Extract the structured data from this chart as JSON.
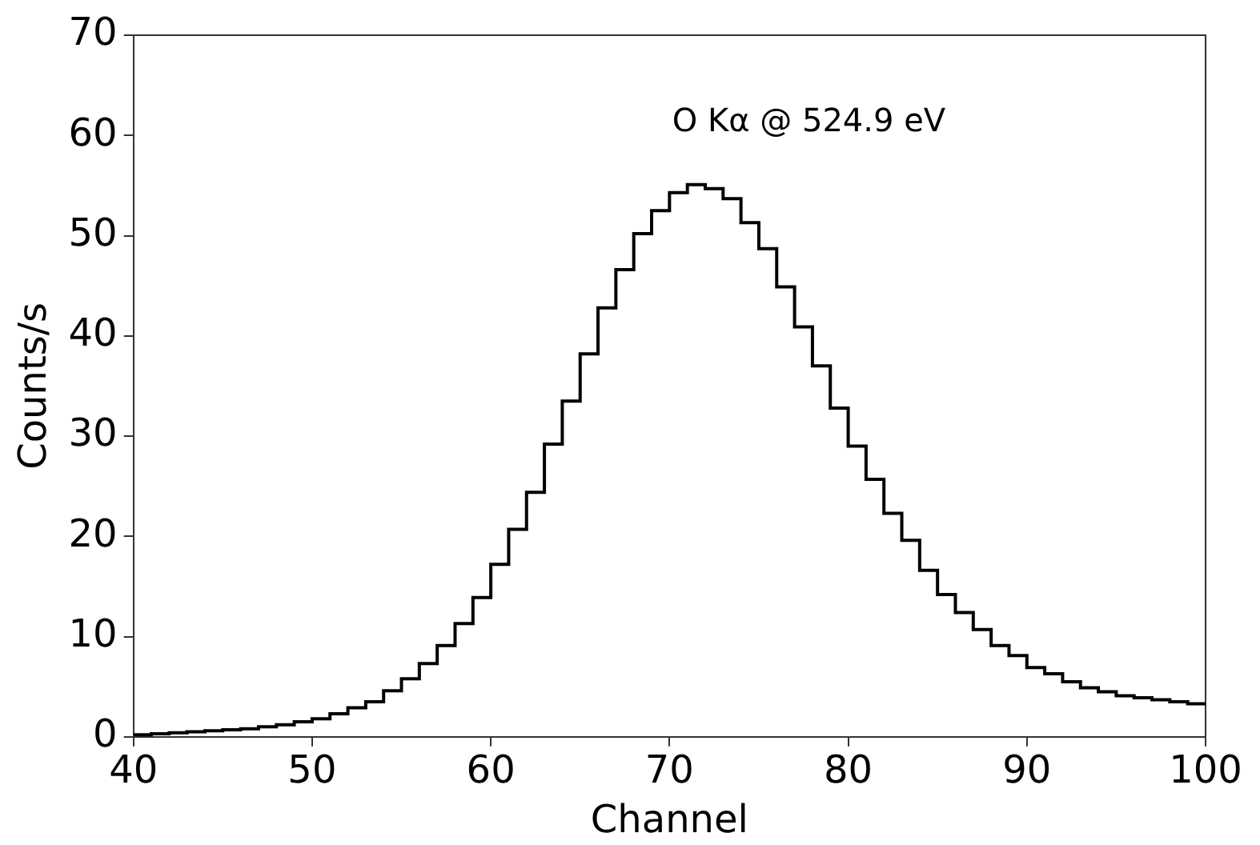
{
  "chart_data": {
    "type": "histogram",
    "xlabel": "Channel",
    "ylabel": "Counts/s",
    "annotations": [
      "O K$_{}$α @ 524.9 eV"
    ],
    "bins": [
      40,
      41,
      42,
      43,
      44,
      45,
      46,
      47,
      48,
      49,
      50,
      51,
      52,
      53,
      54,
      55,
      56,
      57,
      58,
      59,
      60,
      61,
      62,
      63,
      64,
      65,
      66,
      67,
      68,
      69,
      70,
      71,
      72,
      73,
      74,
      75,
      76,
      77,
      78,
      79,
      80,
      81,
      82,
      83,
      84,
      85,
      86,
      87,
      88,
      89,
      90,
      91,
      92,
      93,
      94,
      95,
      96,
      97,
      98,
      99,
      100
    ],
    "values": [
      0.2,
      0.3,
      0.4,
      0.5,
      0.6,
      0.7,
      0.8,
      1.0,
      1.2,
      1.5,
      1.8,
      2.3,
      2.9,
      3.5,
      4.6,
      5.8,
      7.3,
      9.1,
      11.3,
      13.9,
      17.2,
      20.7,
      24.4,
      29.2,
      33.5,
      38.2,
      42.8,
      46.6,
      50.2,
      52.5,
      54.3,
      55.1,
      54.7,
      53.7,
      51.3,
      48.7,
      44.9,
      40.9,
      37.0,
      32.8,
      29.0,
      25.7,
      22.3,
      19.6,
      16.6,
      14.2,
      12.4,
      10.7,
      9.1,
      8.1,
      6.9,
      6.3,
      5.5,
      4.9,
      4.5,
      4.1,
      3.9,
      3.7,
      3.5,
      3.3
    ],
    "color": "#000000",
    "xlim": [
      40,
      100
    ],
    "ylim": [
      0,
      70
    ],
    "xticks": [
      40,
      50,
      60,
      70,
      80,
      90,
      100
    ],
    "yticks": [
      0,
      10,
      20,
      30,
      40,
      50,
      60,
      70
    ],
    "grid": false,
    "legend": false
  }
}
